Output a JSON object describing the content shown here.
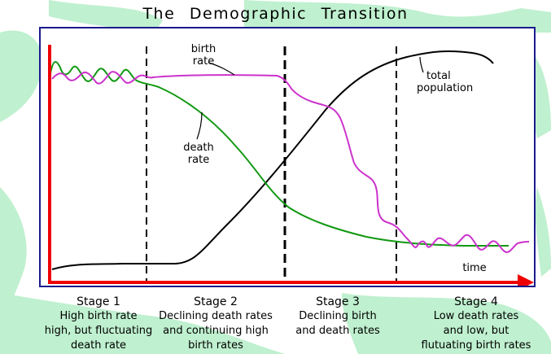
{
  "title": "The   Demographic   Transition",
  "labels": {
    "birth_rate": [
      "birth",
      "rate"
    ],
    "death_rate": [
      "death",
      "rate"
    ],
    "total_population": [
      "total",
      "population"
    ],
    "time": "time"
  },
  "stages": [
    {
      "heading": "Stage  1",
      "lines": [
        "High birth rate",
        "high,  but  fluctuating",
        "death rate"
      ]
    },
    {
      "heading": "Stage  2",
      "lines": [
        "Declining  death  rates",
        "and  continuing  high",
        "birth  rates"
      ]
    },
    {
      "heading": "Stage  3",
      "lines": [
        "Declining  birth",
        "and  death rates"
      ]
    },
    {
      "heading": "Stage  4",
      "lines": [
        "Low  death  rates",
        "and  low,  but",
        "flutuating  birth  rates"
      ]
    }
  ],
  "colors": {
    "birth_rate": "#cc33cc",
    "death_rate": "#119911",
    "total_population": "#000000",
    "axes": "#ee0000",
    "frame": "#1a1a8c",
    "background_map": "#bff0cf"
  }
}
